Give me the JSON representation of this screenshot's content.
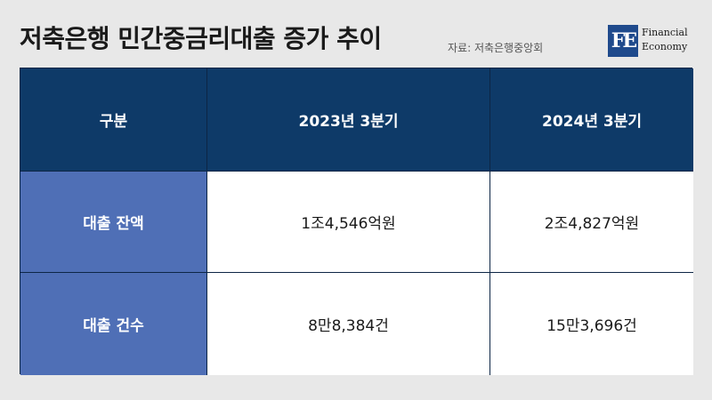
{
  "header": {
    "title": "저축은행 민간중금리대출 증가 추이",
    "source": "자료: 저축은행중앙회",
    "logo": {
      "mark": "FE",
      "line1": "Financial",
      "line2": "Economy"
    }
  },
  "table": {
    "columns": [
      "구분",
      "2023년 3분기",
      "2024년 3분기"
    ],
    "rows": [
      {
        "label": "대출 잔액",
        "values": [
          "1조4,546억원",
          "2조4,827억원"
        ]
      },
      {
        "label": "대출 건수",
        "values": [
          "8만8,384건",
          "15만3,696건"
        ]
      }
    ]
  },
  "colors": {
    "header_bg": "#0e3a68",
    "row_header_bg": "#4f6fb6",
    "cell_bg": "#ffffff",
    "page_bg": "#e8e8e8"
  }
}
